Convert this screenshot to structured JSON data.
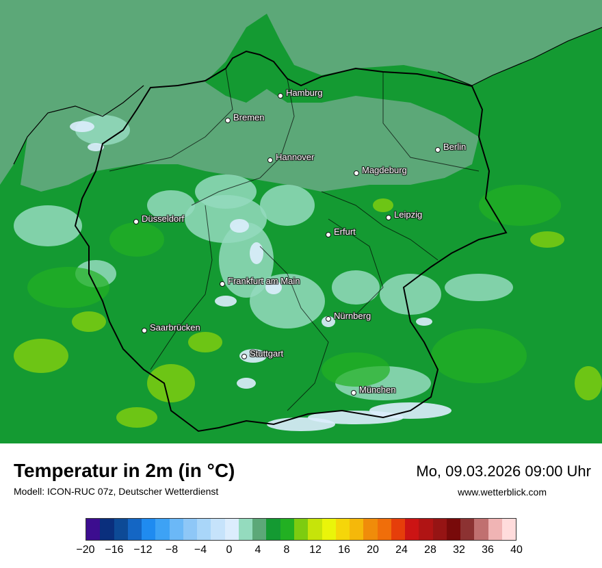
{
  "map": {
    "cities": [
      {
        "id": "hamburg",
        "name": "Hamburg"
      },
      {
        "id": "bremen",
        "name": "Bremen"
      },
      {
        "id": "hannover",
        "name": "Hannover"
      },
      {
        "id": "berlin",
        "name": "Berlin"
      },
      {
        "id": "magdeburg",
        "name": "Magdeburg"
      },
      {
        "id": "duesseldorf",
        "name": "Düsseldorf"
      },
      {
        "id": "leipzig",
        "name": "Leipzig"
      },
      {
        "id": "erfurt",
        "name": "Erfurt"
      },
      {
        "id": "frankfurt",
        "name": "Frankfurt am Main"
      },
      {
        "id": "nuernberg",
        "name": "Nürnberg"
      },
      {
        "id": "saarbruecken",
        "name": "Saarbrücken"
      },
      {
        "id": "stuttgart",
        "name": "Stuttgart"
      },
      {
        "id": "muenchen",
        "name": "München"
      }
    ]
  },
  "footer": {
    "title": "Temperatur in 2m (in °C)",
    "model": "Modell: ICON-RUC 07z, Deutscher Wetterdienst",
    "datetime": "Mo, 09.03.2026 09:00 Uhr",
    "website": "www.wetterblick.com"
  },
  "legend": {
    "ticks": [
      "−20",
      "−16",
      "−12",
      "−8",
      "−4",
      "0",
      "4",
      "8",
      "12",
      "16",
      "20",
      "24",
      "28",
      "32",
      "36",
      "40"
    ],
    "colors": [
      "#3c0d8f",
      "#0a2f7d",
      "#0d4a96",
      "#1466c4",
      "#1f8bf0",
      "#3da2f5",
      "#6bb8f7",
      "#8ec7f7",
      "#a9d6f9",
      "#c6e3fb",
      "#dcedfd",
      "#94dbbe",
      "#5ca878",
      "#149a32",
      "#22b022",
      "#7dcc10",
      "#c6e40a",
      "#eaf50a",
      "#f5d60a",
      "#f5b80a",
      "#f08c0a",
      "#f06e0a",
      "#e63e0a",
      "#cc1414",
      "#b01414",
      "#961414",
      "#780a0a",
      "#8c3232",
      "#c07070",
      "#f0b4b4",
      "#ffdcdc"
    ]
  },
  "palette": {
    "sea": "#5ca878",
    "land_green": "#149a32",
    "land_light": "#22b022",
    "frost_mint": "#94dbbe",
    "cold_white": "#dcedfd",
    "warm_yellow": "#7dcc10",
    "border": "#000000"
  }
}
